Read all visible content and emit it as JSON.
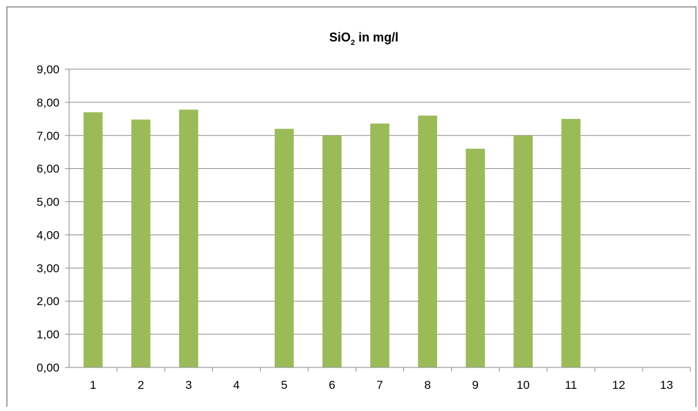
{
  "chart_data": {
    "type": "bar",
    "title_main": "SiO",
    "title_sub": "2",
    "title_rest": " in mg/l",
    "categories": [
      "1",
      "2",
      "3",
      "4",
      "5",
      "6",
      "7",
      "8",
      "9",
      "10",
      "11",
      "12",
      "13"
    ],
    "series": [
      {
        "values": [
          7.7,
          7.48,
          7.78,
          null,
          7.2,
          7.0,
          7.36,
          7.6,
          6.6,
          7.0,
          7.5,
          null,
          null
        ],
        "color": "#9BBB59"
      }
    ],
    "ylim": [
      0,
      9
    ],
    "yticks": [
      "0,00",
      "1,00",
      "2,00",
      "3,00",
      "4,00",
      "5,00",
      "6,00",
      "7,00",
      "8,00",
      "9,00"
    ],
    "xlabel": "",
    "ylabel": "",
    "grid": true,
    "legend": "none",
    "colors": {
      "bar": "#9BBB59",
      "grid": "#878787",
      "border": "#878787",
      "text": "#000000"
    }
  }
}
